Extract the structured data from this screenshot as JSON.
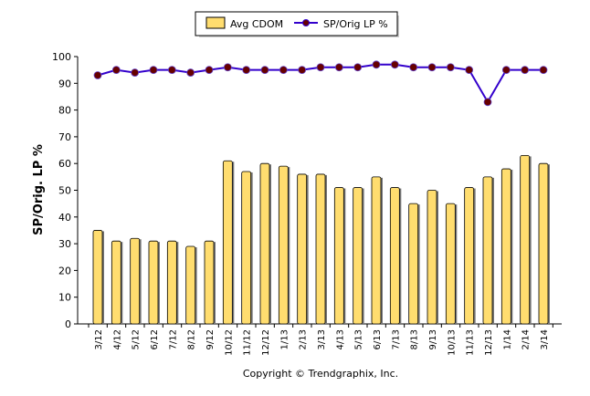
{
  "chart_data": {
    "type": "bar",
    "categories": [
      "3/12",
      "4/12",
      "5/12",
      "6/12",
      "7/12",
      "8/12",
      "9/12",
      "10/12",
      "11/12",
      "12/12",
      "1/13",
      "2/13",
      "3/13",
      "4/13",
      "5/13",
      "6/13",
      "7/13",
      "8/13",
      "9/13",
      "10/13",
      "11/13",
      "12/13",
      "1/14",
      "2/14",
      "3/14"
    ],
    "series": [
      {
        "name": "Avg CDOM",
        "type": "bar",
        "color": "#FFDD6F",
        "values": [
          35,
          31,
          32,
          31,
          31,
          29,
          31,
          61,
          57,
          60,
          59,
          56,
          56,
          51,
          51,
          55,
          51,
          45,
          50,
          45,
          51,
          55,
          58,
          63,
          60
        ]
      },
      {
        "name": "SP/Orig LP %",
        "type": "line",
        "color": "#3300CC",
        "marker_color": "#660000",
        "values": [
          93,
          95,
          94,
          95,
          95,
          94,
          95,
          96,
          95,
          95,
          95,
          95,
          96,
          96,
          96,
          97,
          97,
          96,
          96,
          96,
          95,
          83,
          95,
          95,
          95
        ]
      }
    ],
    "ylabel": "SP/Orig. LP %",
    "xlabel": "",
    "ylim": [
      0,
      100
    ],
    "yticks": [
      0,
      10,
      20,
      30,
      40,
      50,
      60,
      70,
      80,
      90,
      100
    ],
    "grid": false,
    "legend": "top-center"
  },
  "footer": {
    "copyright": "Copyright © Trendgraphix, Inc."
  }
}
